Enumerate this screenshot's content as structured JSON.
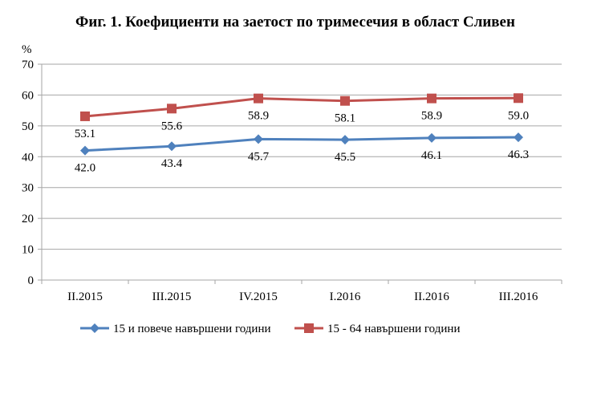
{
  "chart_data": {
    "type": "line",
    "title": "Фиг. 1. Коефициенти на заетост по тримесечия в област Сливен",
    "ylabel": "%",
    "xlabel": "",
    "ylim": [
      0,
      70
    ],
    "yticks": [
      "0",
      "10",
      "20",
      "30",
      "40",
      "50",
      "60",
      "70"
    ],
    "grid": true,
    "legend_position": "bottom",
    "categories": [
      "II.2015",
      "III.2015",
      "IV.2015",
      "I.2016",
      "II.2016",
      "III.2016"
    ],
    "series": [
      {
        "name": "15 и повече навършени години",
        "color": "#4F81BD",
        "marker": "diamond",
        "values": [
          42.0,
          43.4,
          45.7,
          45.5,
          46.1,
          46.3
        ],
        "labels": [
          "42.0",
          "43.4",
          "45.7",
          "45.5",
          "46.1",
          "46.3"
        ]
      },
      {
        "name": "15 - 64 навършени години",
        "color": "#C0504D",
        "marker": "square",
        "values": [
          53.1,
          55.6,
          58.9,
          58.1,
          58.9,
          59.0
        ],
        "labels": [
          "53.1",
          "55.6",
          "58.9",
          "58.1",
          "58.9",
          "59.0"
        ]
      }
    ]
  }
}
